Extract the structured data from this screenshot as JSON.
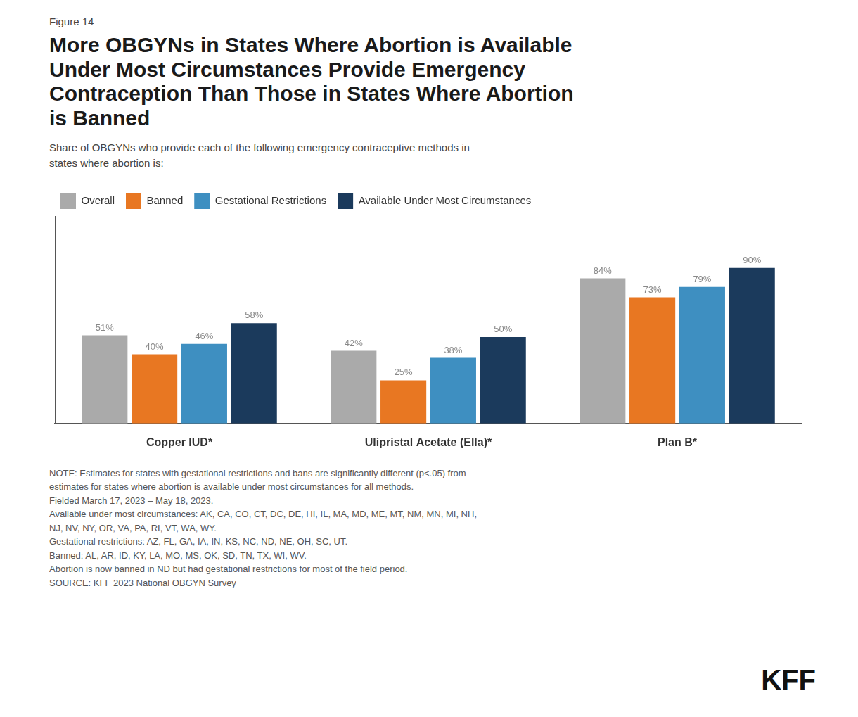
{
  "chart_data": {
    "type": "bar",
    "title": "More OBGYNs in States Where Abortion is Available\nUnder Most Circumstances Provide Emergency\nContraception Than Those in States Where Abortion\nis Banned",
    "subtitle": "Share of OBGYNs who provide each of the following emergency contraceptive methods in\nstates where abortion is:",
    "categories": [
      "Copper IUD*",
      "Ulipristal Acetate (Ella)*",
      "Plan B*"
    ],
    "series": [
      {
        "name": "Overall",
        "color": "#aaaaaa",
        "values": [
          51,
          42,
          84
        ],
        "value_labels": [
          "51%",
          "42%",
          "84%"
        ]
      },
      {
        "name": "Banned",
        "color": "#e87722",
        "values": [
          40,
          25,
          73
        ],
        "value_labels": [
          "40%",
          "25%",
          "73%"
        ]
      },
      {
        "name": "Gestational Restrictions",
        "color": "#3e8fc1",
        "values": [
          46,
          38,
          79
        ],
        "value_labels": [
          "46%",
          "38%",
          "79%"
        ]
      },
      {
        "name": "Available Under Most Circumstances",
        "color": "#1b3a5c",
        "values": [
          58,
          50,
          90
        ],
        "value_labels": [
          "58%",
          "50%",
          "90%"
        ]
      }
    ],
    "ylim": [
      0,
      120
    ],
    "grid": false,
    "legend": "top",
    "data_labels": true,
    "tick_labels": "x",
    "annotations": [
      "Figure 14",
      "NOTE: Estimates for states with gestational restrictions and bans are significantly different (p<.05) from",
      "estimates for states where abortion is available under most circumstances for all methods.",
      "Fielded March 17, 2023 – May 18, 2023.",
      "Available under most circumstances: AK, CA, CO, CT, DC, DE, HI, IL, MA, MD, ME, MT, NM, MN, MI, NH,",
      "NJ, NV, NY, OR, VA, PA, RI, VT, WA, WY.",
      "Gestational restrictions: AZ, FL, GA, IA, IN, KS, NC, ND, NE, OH, SC, UT.",
      "Banned: AL, AR, ID, KY, LA, MO, MS, OK, SD, TN, TX, WI, WV.",
      "Abortion is now banned in ND but had gestational restrictions for most of the field period.",
      "SOURCE: KFF 2023 National OBGYN Survey",
      "KFF"
    ]
  }
}
